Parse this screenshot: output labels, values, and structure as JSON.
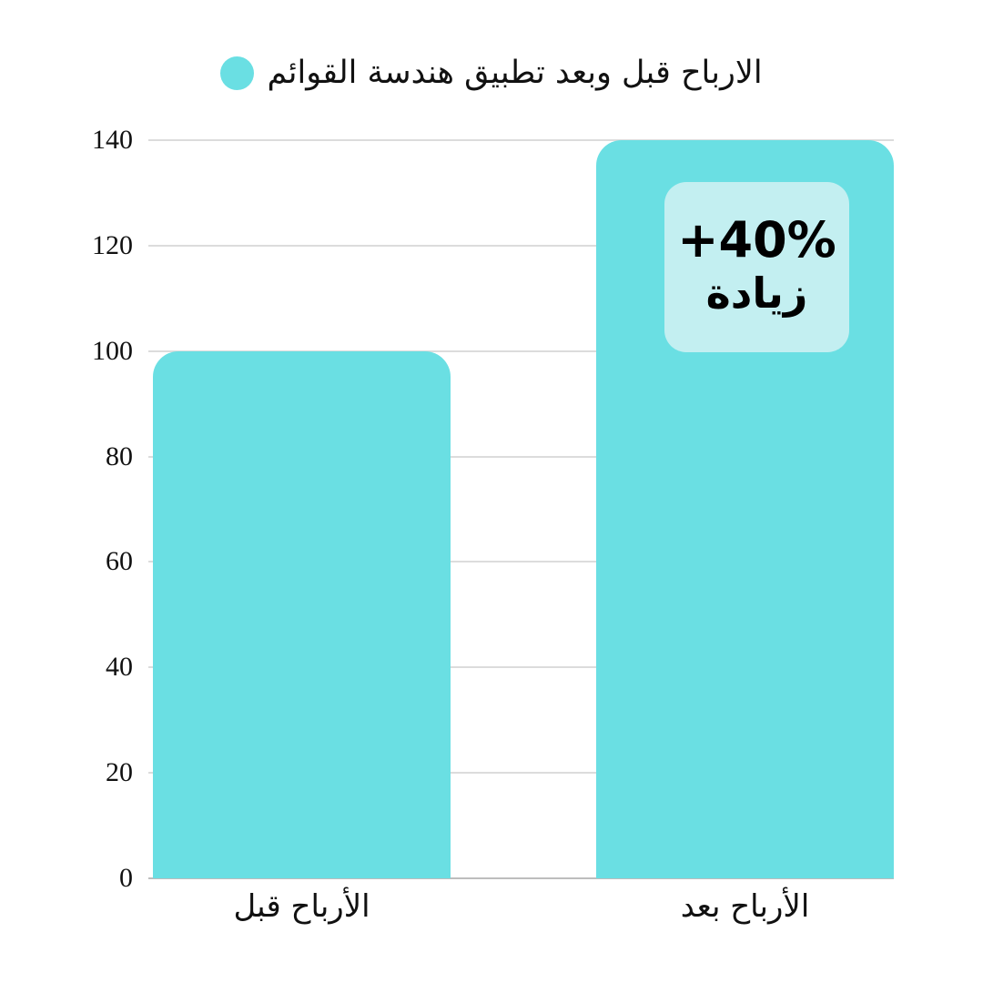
{
  "chart_data": {
    "type": "bar",
    "title": "الارباح قبل وبعد تطبيق هندسة القوائم",
    "categories": [
      "الأرباح قبل",
      "الأرباح بعد"
    ],
    "values": [
      100,
      140
    ],
    "ylim": [
      0,
      140
    ],
    "yticks": [
      0,
      20,
      40,
      60,
      80,
      100,
      120,
      140
    ],
    "grid": true,
    "legend_position": "top-center",
    "bar_color": "#6ADFE3",
    "annotation": {
      "line1": "+40%",
      "line2": "زيادة",
      "target_category": "الأرباح بعد",
      "bg_color": "#C3EFF1"
    }
  },
  "colors": {
    "accent_teal": "#6ADFE3",
    "annotation_bg": "#C3EFF1",
    "gridline": "#DCDCDC",
    "baseline": "#BDBDBD",
    "text": "#111111"
  }
}
